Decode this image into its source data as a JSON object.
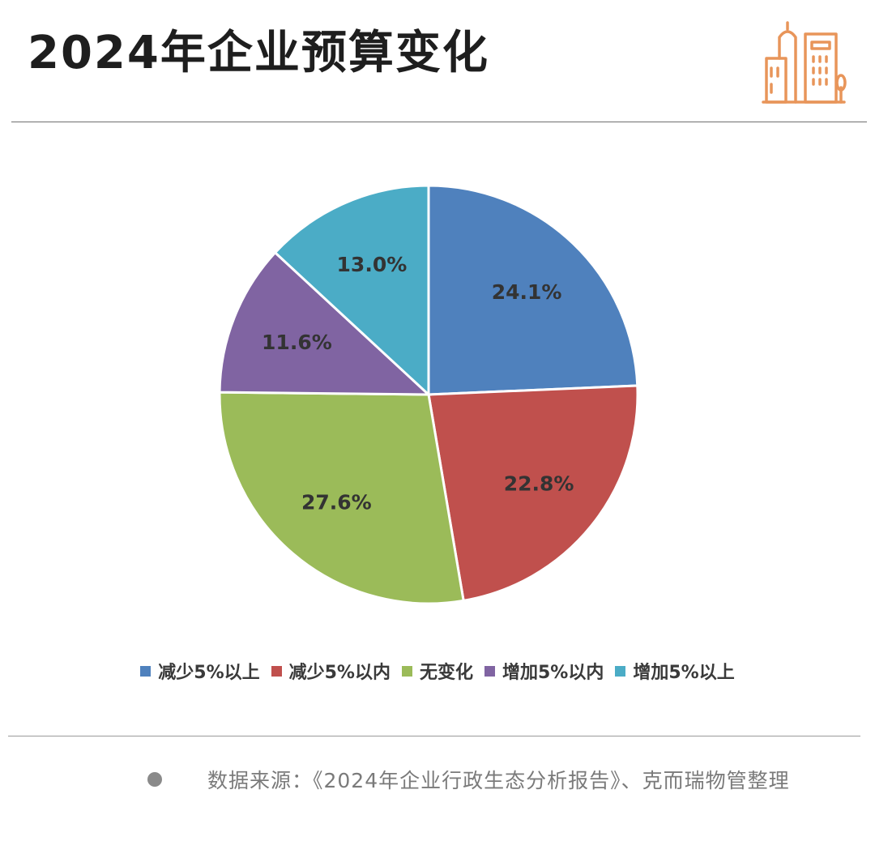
{
  "header": {
    "title": "2024年企业预算变化",
    "logo_icon": "city-buildings-icon",
    "logo_color": "#e8955a"
  },
  "chart_data": {
    "type": "pie",
    "labels": [
      "减少5%以上",
      "减少5%以内",
      "无变化",
      "增加5%以内",
      "增加5%以上"
    ],
    "values": [
      24.1,
      22.8,
      27.6,
      11.6,
      13.0
    ],
    "value_labels": [
      "24.1%",
      "22.8%",
      "27.6%",
      "11.6%",
      "13.0%"
    ],
    "colors": [
      "#4f81bd",
      "#c0504d",
      "#9bbb59",
      "#8064a2",
      "#4bacc6"
    ],
    "start": "12 o'clock",
    "direction": "clockwise",
    "legend_position": "bottom"
  },
  "footer": {
    "source": "数据来源：《2024年企业行政生态分析报告》、克而瑞物管整理"
  }
}
